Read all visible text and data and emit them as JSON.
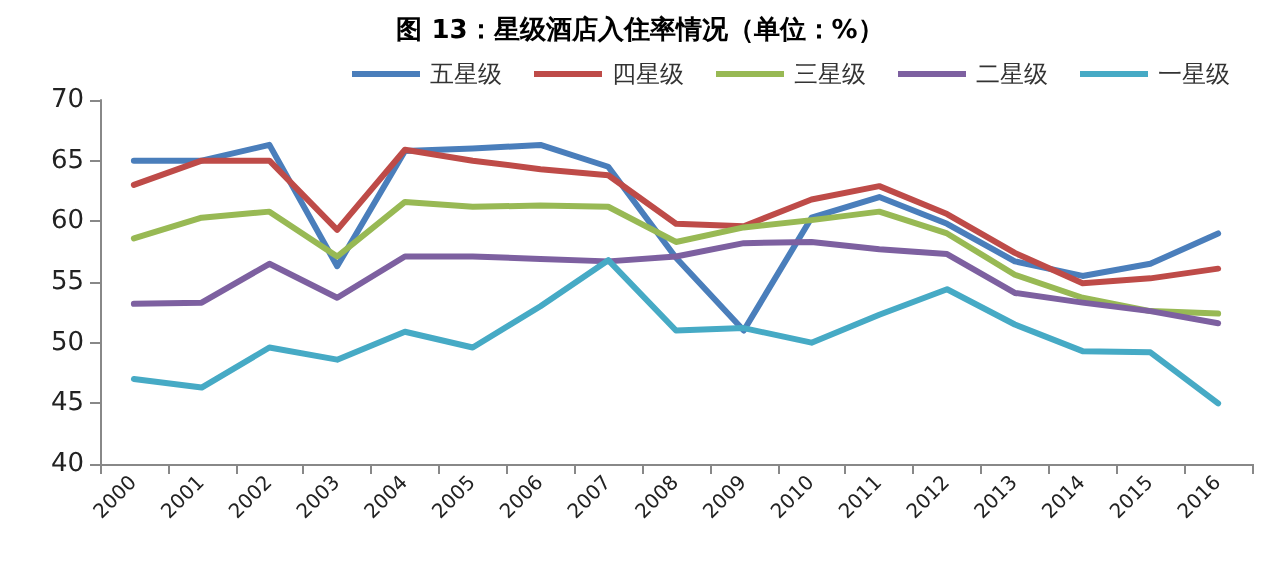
{
  "chart_data": {
    "type": "line",
    "title": "图 13：星级酒店入住率情况（单位：%）",
    "categories": [
      "2000",
      "2001",
      "2002",
      "2003",
      "2004",
      "2005",
      "2006",
      "2007",
      "2008",
      "2009",
      "2010",
      "2011",
      "2012",
      "2013",
      "2014",
      "2015",
      "2016"
    ],
    "series": [
      {
        "name": "五星级",
        "color": "#4a7ebb",
        "values": [
          65,
          65,
          66.3,
          56.3,
          65.8,
          66,
          66.3,
          64.5,
          57,
          51,
          60.3,
          62,
          59.8,
          56.7,
          55.5,
          56.5,
          59
        ]
      },
      {
        "name": "四星级",
        "color": "#be4b48",
        "values": [
          63,
          65,
          65,
          59.3,
          65.9,
          65,
          64.3,
          63.8,
          59.8,
          59.6,
          61.8,
          62.9,
          60.6,
          57.4,
          54.9,
          55.3,
          56.1
        ]
      },
      {
        "name": "三星级",
        "color": "#98b954",
        "values": [
          58.6,
          60.3,
          60.8,
          57.1,
          61.6,
          61.2,
          61.3,
          61.2,
          58.3,
          59.5,
          60.1,
          60.8,
          59,
          55.6,
          53.7,
          52.6,
          52.4
        ]
      },
      {
        "name": "二星级",
        "color": "#7d60a0",
        "values": [
          53.2,
          53.3,
          56.5,
          53.7,
          57.1,
          57.1,
          56.9,
          56.7,
          57.1,
          58.2,
          58.3,
          57.7,
          57.3,
          54.1,
          53.3,
          52.6,
          51.6
        ]
      },
      {
        "name": "一星级",
        "color": "#46aac5",
        "values": [
          47,
          46.3,
          49.6,
          48.6,
          50.9,
          49.6,
          53,
          56.8,
          51,
          51.2,
          50,
          52.3,
          54.4,
          51.5,
          49.3,
          49.2,
          45
        ]
      }
    ],
    "ylim": [
      40,
      70
    ],
    "yticks": [
      40,
      45,
      50,
      55,
      60,
      65,
      70
    ],
    "grid": false,
    "legend": "top right",
    "marker": "none",
    "line_style": "solid"
  }
}
